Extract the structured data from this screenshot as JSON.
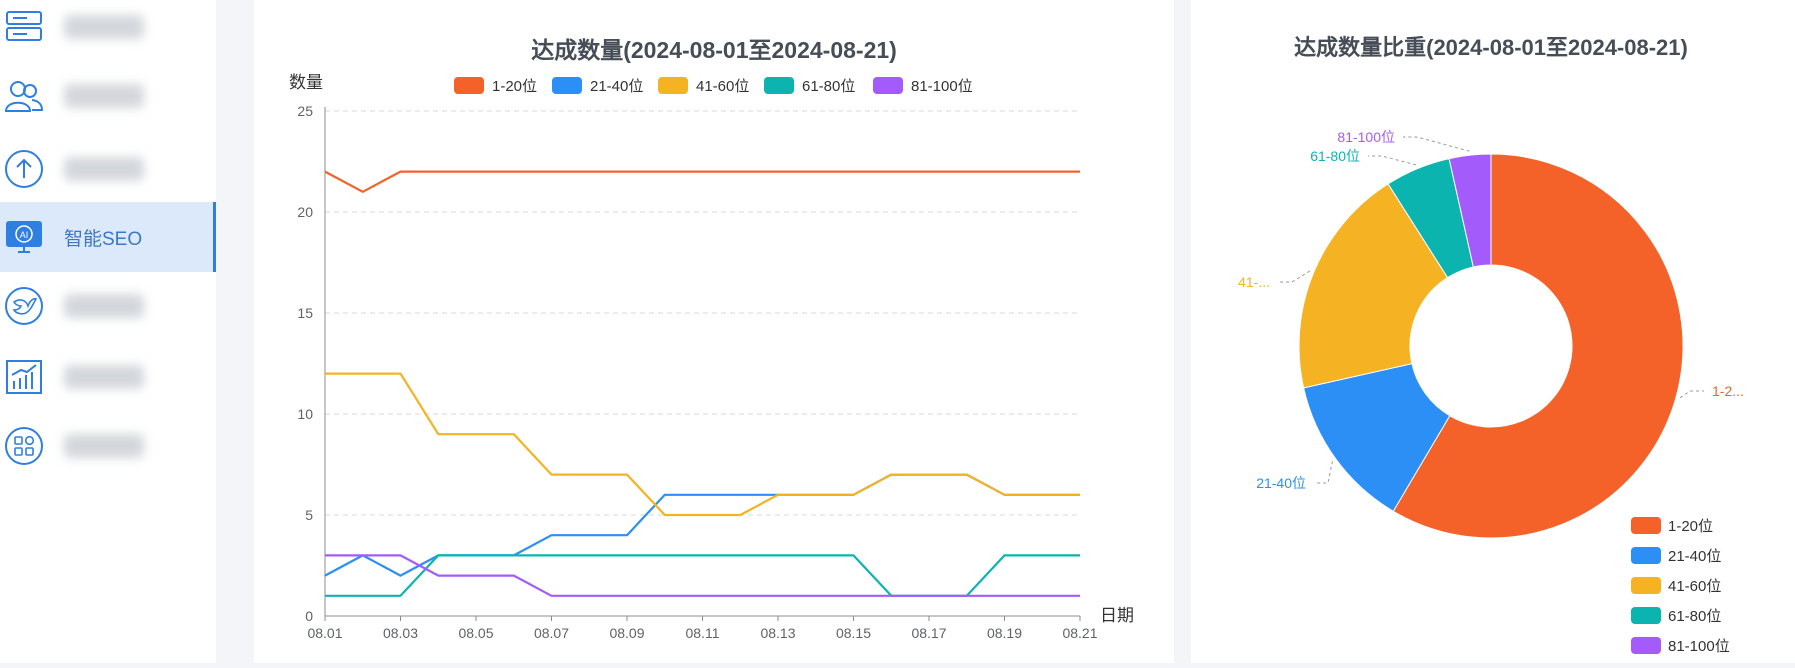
{
  "sidebar": {
    "items": [
      {
        "name": "server-icon",
        "label": "",
        "blurred": true,
        "active": false
      },
      {
        "name": "users-icon",
        "label": "",
        "blurred": true,
        "active": false
      },
      {
        "name": "upload-icon",
        "label": "",
        "blurred": true,
        "active": false
      },
      {
        "name": "ai-monitor-icon",
        "label": "智能SEO",
        "blurred": false,
        "active": true
      },
      {
        "name": "bird-icon",
        "label": "",
        "blurred": true,
        "active": false
      },
      {
        "name": "chart-icon",
        "label": "",
        "blurred": true,
        "active": false
      },
      {
        "name": "apps-icon",
        "label": "",
        "blurred": true,
        "active": false
      }
    ]
  },
  "colors": {
    "c1": "#f4622a",
    "c2": "#2b8ff5",
    "c3": "#f5b324",
    "c4": "#0cb4b0",
    "c5": "#a35cfb",
    "axis": "#606266",
    "grid": "#d9d9d9",
    "active_blue": "#2f7fe0"
  },
  "chart_data": [
    {
      "type": "line",
      "title": "达成数量(2024-08-01至2024-08-21)",
      "xlabel": "日期",
      "ylabel": "数量",
      "ylim": [
        0,
        25
      ],
      "yticks": [
        "0",
        "5",
        "10",
        "15",
        "20",
        "25"
      ],
      "x": [
        "08.01",
        "08.02",
        "08.03",
        "08.04",
        "08.05",
        "08.06",
        "08.07",
        "08.08",
        "08.09",
        "08.10",
        "08.11",
        "08.12",
        "08.13",
        "08.14",
        "08.15",
        "08.16",
        "08.17",
        "08.18",
        "08.19",
        "08.20",
        "08.21"
      ],
      "x_tick_labels": [
        "08.01",
        "08.03",
        "08.05",
        "08.07",
        "08.09",
        "08.11",
        "08.13",
        "08.15",
        "08.17",
        "08.19",
        "08.21"
      ],
      "grid": true,
      "legend_position": "top-center",
      "series": [
        {
          "name": "1-20位",
          "color": "#f4622a",
          "values": [
            22,
            21,
            22,
            22,
            22,
            22,
            22,
            22,
            22,
            22,
            22,
            22,
            22,
            22,
            22,
            22,
            22,
            22,
            22,
            22,
            22
          ]
        },
        {
          "name": "21-40位",
          "color": "#2b8ff5",
          "values": [
            2,
            3,
            2,
            3,
            3,
            3,
            4,
            4,
            4,
            6,
            6,
            6,
            6,
            6,
            6,
            7,
            7,
            7,
            6,
            6,
            6
          ]
        },
        {
          "name": "41-60位",
          "color": "#f5b324",
          "values": [
            12,
            12,
            12,
            9,
            9,
            9,
            7,
            7,
            7,
            5,
            5,
            5,
            6,
            6,
            6,
            7,
            7,
            7,
            6,
            6,
            6
          ]
        },
        {
          "name": "61-80位",
          "color": "#0cb4b0",
          "values": [
            1,
            1,
            1,
            3,
            3,
            3,
            3,
            3,
            3,
            3,
            3,
            3,
            3,
            3,
            3,
            1,
            1,
            1,
            3,
            3,
            3
          ]
        },
        {
          "name": "81-100位",
          "color": "#a35cfb",
          "values": [
            3,
            3,
            3,
            2,
            2,
            2,
            1,
            1,
            1,
            1,
            1,
            1,
            1,
            1,
            1,
            1,
            1,
            1,
            1,
            1,
            1
          ]
        }
      ]
    },
    {
      "type": "pie",
      "title": "达成数量比重(2024-08-01至2024-08-21)",
      "legend_position": "bottom-right",
      "slices": [
        {
          "name": "1-20位",
          "label": "1-2...",
          "value": 58.5,
          "color": "#f4622a"
        },
        {
          "name": "21-40位",
          "label": "21-40位",
          "value": 13.0,
          "color": "#2b8ff5"
        },
        {
          "name": "41-60位",
          "label": "41-...",
          "value": 19.5,
          "color": "#f5b324"
        },
        {
          "name": "61-80位",
          "label": "61-80位",
          "value": 5.5,
          "color": "#0cb4b0"
        },
        {
          "name": "81-100位",
          "label": "81-100位",
          "value": 3.5,
          "color": "#a35cfb"
        }
      ]
    }
  ]
}
